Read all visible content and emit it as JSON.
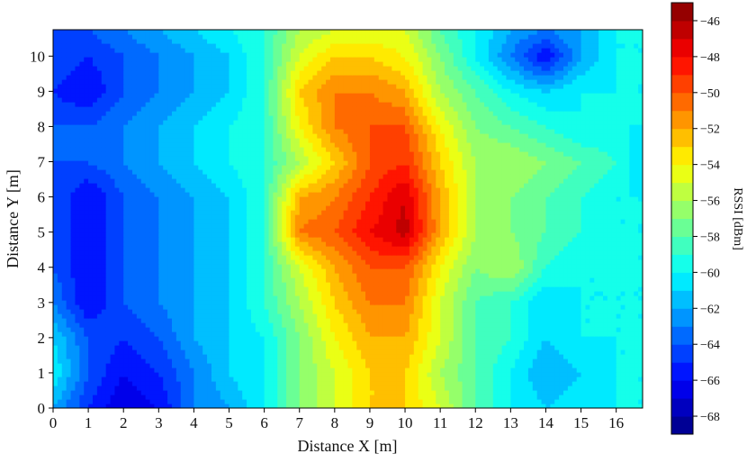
{
  "chart_data": {
    "type": "heatmap",
    "subtype": "filled-contour",
    "title": "",
    "xlabel": "Distance X [m]",
    "ylabel": "Distance Y [m]",
    "xlim": [
      0,
      16.75
    ],
    "ylim": [
      0,
      10.75
    ],
    "x_ticks": [
      0,
      1,
      2,
      3,
      4,
      5,
      6,
      7,
      8,
      9,
      10,
      11,
      12,
      13,
      14,
      15,
      16
    ],
    "y_ticks": [
      0,
      1,
      2,
      3,
      4,
      5,
      6,
      7,
      8,
      9,
      10
    ],
    "x": [
      0,
      1,
      2,
      3,
      4,
      5,
      6,
      7,
      8,
      9,
      10,
      11,
      12,
      13,
      14,
      15,
      16,
      16.75
    ],
    "y": [
      0,
      1,
      2,
      3,
      4,
      5,
      6,
      7,
      8,
      9,
      10,
      10.75
    ],
    "z": [
      [
        -62,
        -65,
        -67,
        -66,
        -63,
        -62,
        -60,
        -57,
        -55,
        -53,
        -53,
        -55,
        -58,
        -60,
        -61,
        -60,
        -60,
        -60
      ],
      [
        -60,
        -64,
        -66,
        -65,
        -63,
        -61,
        -60,
        -57,
        -55,
        -53,
        -53,
        -56,
        -58,
        -60,
        -62,
        -61,
        -60,
        -60
      ],
      [
        -61,
        -64,
        -65,
        -64,
        -62,
        -61,
        -60,
        -57,
        -54,
        -52,
        -52,
        -55,
        -58,
        -59,
        -61,
        -60,
        -60,
        -60
      ],
      [
        -63,
        -66,
        -64,
        -63,
        -62,
        -61,
        -59,
        -56,
        -53,
        -51,
        -51,
        -55,
        -58,
        -59,
        -61,
        -60,
        -60,
        -60
      ],
      [
        -64,
        -66,
        -64,
        -63,
        -62,
        -61,
        -59,
        -55,
        -52,
        -50,
        -50,
        -54,
        -57,
        -56,
        -59,
        -60,
        -60,
        -60
      ],
      [
        -64,
        -66,
        -64,
        -63,
        -62,
        -61,
        -59,
        -51,
        -50,
        -48,
        -46.5,
        -52,
        -56,
        -57,
        -58,
        -59,
        -60,
        -60
      ],
      [
        -64,
        -66,
        -64,
        -63,
        -62,
        -61,
        -59,
        -52,
        -51,
        -49,
        -47,
        -52,
        -56,
        -57,
        -58,
        -59,
        -60,
        -60
      ],
      [
        -64,
        -64,
        -63,
        -62,
        -61,
        -60,
        -59,
        -56,
        -53,
        -50,
        -49,
        -53,
        -56,
        -56,
        -57,
        -58,
        -59,
        -61
      ],
      [
        -64,
        -64,
        -63,
        -62,
        -61,
        -60,
        -59,
        -54,
        -51,
        -50,
        -50,
        -54,
        -57,
        -58,
        -59,
        -60,
        -60,
        -60
      ],
      [
        -65,
        -66,
        -64,
        -63,
        -62,
        -61,
        -59,
        -53,
        -51,
        -51,
        -52,
        -56,
        -58,
        -60,
        -61,
        -60,
        -60,
        -60
      ],
      [
        -64,
        -65,
        -64,
        -63,
        -62,
        -61,
        -59,
        -55,
        -53,
        -53,
        -54,
        -57,
        -60,
        -63,
        -66,
        -62,
        -60,
        -60
      ],
      [
        -64,
        -64,
        -63,
        -62,
        -61,
        -60,
        -59,
        -56,
        -55,
        -55,
        -55,
        -58,
        -60,
        -62,
        -63,
        -62,
        -60,
        -60
      ]
    ],
    "levels": [
      -69,
      -68,
      -67,
      -66,
      -65,
      -64,
      -63,
      -62,
      -61,
      -60,
      -59,
      -58,
      -57,
      -56,
      -55,
      -54,
      -53,
      -52,
      -51,
      -50,
      -49,
      -48,
      -47,
      -46,
      -45
    ],
    "colormap": "jet",
    "colorbar": {
      "label": "RSSI [dBm]",
      "range": [
        -69,
        -45
      ],
      "ticks": [
        -68,
        -66,
        -64,
        -62,
        -60,
        -58,
        -56,
        -54,
        -52,
        -50,
        -48,
        -46
      ]
    },
    "grid": false,
    "legend": "none"
  }
}
